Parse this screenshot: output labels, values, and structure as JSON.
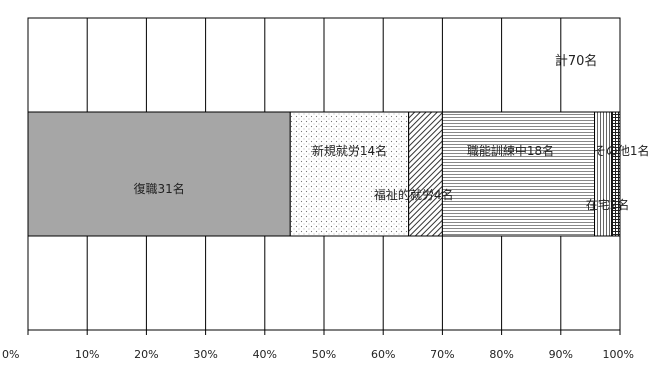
{
  "chart_data": {
    "type": "bar",
    "orientation": "horizontal",
    "stacked": true,
    "total_label": "計70名",
    "xlim": [
      0,
      100
    ],
    "grid": true,
    "x_ticks": [
      "0%",
      "10%",
      "20%",
      "30%",
      "40%",
      "50%",
      "60%",
      "70%",
      "80%",
      "90%",
      "100%"
    ],
    "segments": [
      {
        "label": "復職31名",
        "count": 31,
        "percent": 44.3,
        "fill": "gray",
        "color": "#a6a6a6"
      },
      {
        "label": "新規就労14名",
        "count": 14,
        "percent": 20.0,
        "fill": "dots",
        "color": "#ffffff"
      },
      {
        "label": "福祉的就労4名",
        "count": 4,
        "percent": 5.7,
        "fill": "diagonal",
        "color": "#7f7f7f"
      },
      {
        "label": "職能訓練中18名",
        "count": 18,
        "percent": 25.7,
        "fill": "horizontal-lines",
        "color": "#bfbfbf"
      },
      {
        "label": "在宅2名",
        "count": 2,
        "percent": 2.9,
        "fill": "vertical-lines",
        "color": "#999999"
      },
      {
        "label": "その他1名",
        "count": 1,
        "percent": 1.4,
        "fill": "grid",
        "color": "#555555"
      }
    ]
  }
}
